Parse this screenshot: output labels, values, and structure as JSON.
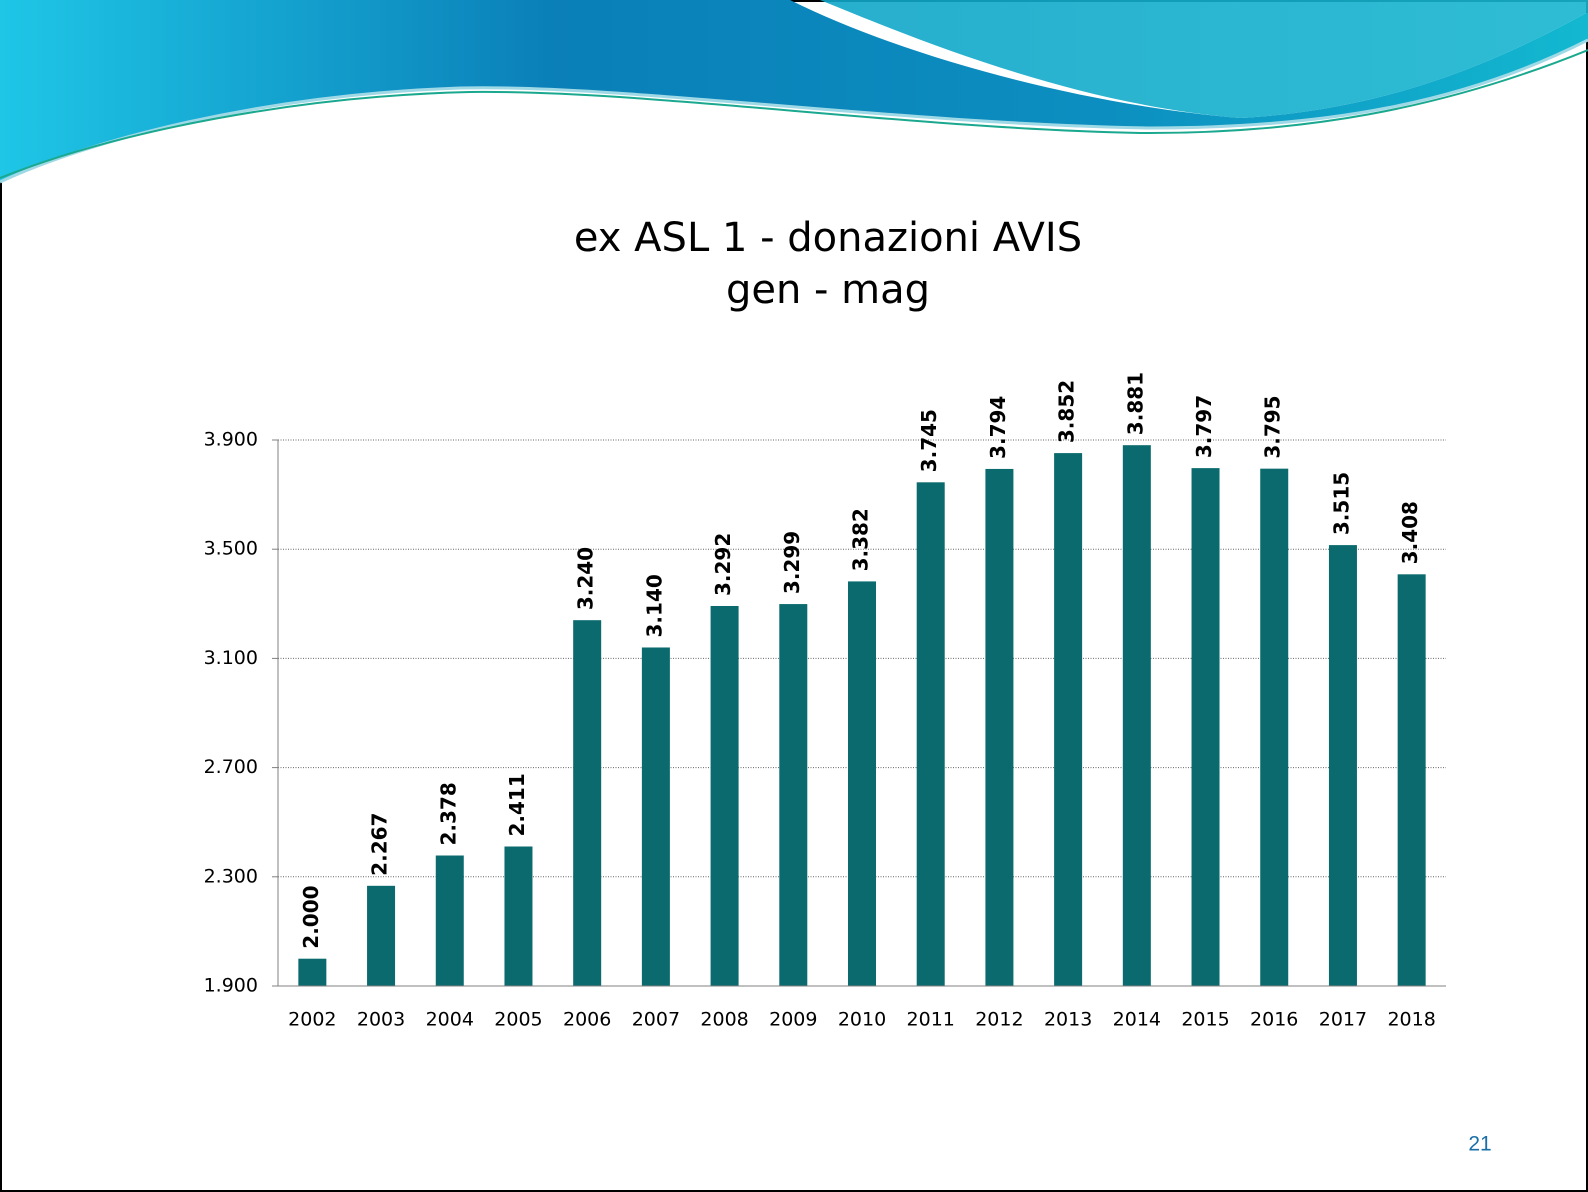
{
  "chart_data": {
    "type": "bar",
    "title": "ex ASL 1 - donazioni AVIS",
    "subtitle": "gen - mag",
    "categories": [
      "2002",
      "2003",
      "2004",
      "2005",
      "2006",
      "2007",
      "2008",
      "2009",
      "2010",
      "2011",
      "2012",
      "2013",
      "2014",
      "2015",
      "2016",
      "2017",
      "2018"
    ],
    "values": [
      2000,
      2267,
      2378,
      2411,
      3240,
      3140,
      3292,
      3299,
      3382,
      3745,
      3794,
      3852,
      3881,
      3797,
      3795,
      3515,
      3408
    ],
    "value_labels": [
      "2.000",
      "2.267",
      "2.378",
      "2.411",
      "3.240",
      "3.140",
      "3.292",
      "3.299",
      "3.382",
      "3.745",
      "3.794",
      "3.852",
      "3.881",
      "3.797",
      "3.795",
      "3.515",
      "3.408"
    ],
    "color": "#0a6a6d",
    "ylim": [
      1900,
      3900
    ],
    "yticks": [
      {
        "value": 1900,
        "label": "1.900"
      },
      {
        "value": 2300,
        "label": "2.300"
      },
      {
        "value": 2700,
        "label": "2.700"
      },
      {
        "value": 3100,
        "label": "3.100"
      },
      {
        "value": 3500,
        "label": "3.500"
      },
      {
        "value": 3900,
        "label": "3.900"
      }
    ],
    "grid": true
  },
  "page_number": "21"
}
